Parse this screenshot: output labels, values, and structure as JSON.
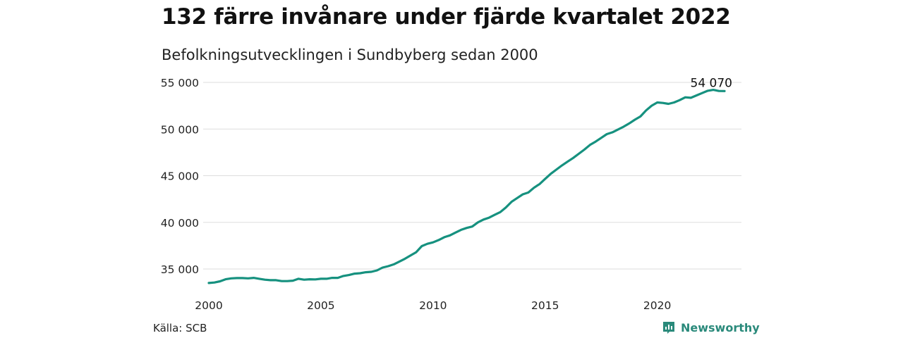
{
  "title": "132 färre invånare under fjärde kvartalet 2022",
  "subtitle": "Befolkningsutvecklingen i Sundbyberg sedan 2000",
  "source": "Källa: SCB",
  "brand": "Newsworthy",
  "colors": {
    "line": "#16917f",
    "grid": "#dddddd",
    "brand": "#2a8a7b"
  },
  "chart_data": {
    "type": "line",
    "title": "132 färre invånare under fjärde kvartalet 2022",
    "subtitle": "Befolkningsutvecklingen i Sundbyberg sedan 2000",
    "xlabel": "",
    "ylabel": "",
    "xlim": [
      2000,
      2023
    ],
    "ylim": [
      33000,
      55500
    ],
    "grid": true,
    "x_ticks": [
      2000,
      2005,
      2010,
      2015,
      2020
    ],
    "x_tick_labels": [
      "2000",
      "2005",
      "2010",
      "2015",
      "2020"
    ],
    "y_ticks": [
      35000,
      40000,
      45000,
      50000,
      55000
    ],
    "y_tick_labels": [
      "35 000",
      "40 000",
      "45 000",
      "50 000",
      "55 000"
    ],
    "end_label": "54 070",
    "series": [
      {
        "x": [
          2000.0,
          2000.25,
          2000.5,
          2000.75,
          2001.0,
          2001.25,
          2001.5,
          2001.75,
          2002.0,
          2002.25,
          2002.5,
          2002.75,
          2003.0,
          2003.25,
          2003.5,
          2003.75,
          2004.0,
          2004.25,
          2004.5,
          2004.75,
          2005.0,
          2005.25,
          2005.5,
          2005.75,
          2006.0,
          2006.25,
          2006.5,
          2006.75,
          2007.0,
          2007.25,
          2007.5,
          2007.75,
          2008.0,
          2008.25,
          2008.5,
          2008.75,
          2009.0,
          2009.25,
          2009.5,
          2009.75,
          2010.0,
          2010.25,
          2010.5,
          2010.75,
          2011.0,
          2011.25,
          2011.5,
          2011.75,
          2012.0,
          2012.25,
          2012.5,
          2012.75,
          2013.0,
          2013.25,
          2013.5,
          2013.75,
          2014.0,
          2014.25,
          2014.5,
          2014.75,
          2015.0,
          2015.25,
          2015.5,
          2015.75,
          2016.0,
          2016.25,
          2016.5,
          2016.75,
          2017.0,
          2017.25,
          2017.5,
          2017.75,
          2018.0,
          2018.25,
          2018.5,
          2018.75,
          2019.0,
          2019.25,
          2019.5,
          2019.75,
          2020.0,
          2020.25,
          2020.5,
          2020.75,
          2021.0,
          2021.25,
          2021.5,
          2021.75,
          2022.0,
          2022.25,
          2022.5,
          2022.75,
          2023.0
        ],
        "values": [
          33500,
          33550,
          33680,
          33900,
          34000,
          34030,
          34030,
          34000,
          34050,
          33950,
          33850,
          33800,
          33800,
          33700,
          33700,
          33750,
          33950,
          33850,
          33900,
          33880,
          33950,
          33950,
          34050,
          34050,
          34250,
          34350,
          34500,
          34550,
          34650,
          34700,
          34850,
          35150,
          35300,
          35500,
          35800,
          36100,
          36450,
          36800,
          37450,
          37700,
          37850,
          38100,
          38400,
          38600,
          38900,
          39200,
          39400,
          39550,
          40000,
          40300,
          40500,
          40800,
          41100,
          41600,
          42200,
          42600,
          43000,
          43200,
          43700,
          44100,
          44650,
          45200,
          45650,
          46100,
          46500,
          46900,
          47350,
          47800,
          48300,
          48650,
          49050,
          49450,
          49650,
          49950,
          50250,
          50600,
          51000,
          51350,
          52000,
          52500,
          52850,
          52800,
          52700,
          52850,
          53100,
          53400,
          53350,
          53600,
          53850,
          54100,
          54200,
          54080,
          54070
        ]
      }
    ]
  }
}
